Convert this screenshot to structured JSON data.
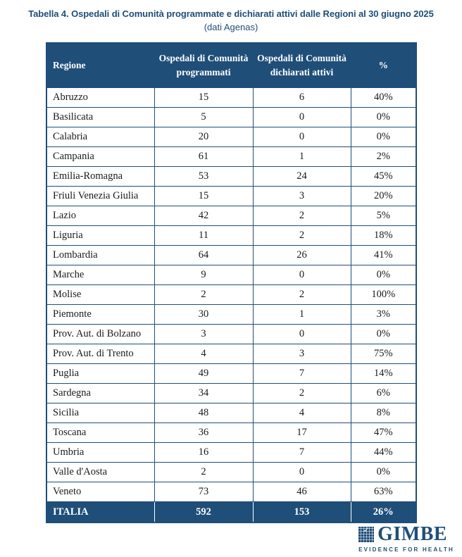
{
  "title": "Tabella 4. Ospedali di Comunità programmate e dichiarati attivi dalle Regioni al 30 giugno 2025",
  "subtitle": "(dati Agenas)",
  "colors": {
    "accent": "#1F4E79",
    "header_text": "#ffffff",
    "body_text": "#1a1a1a",
    "background": "#ffffff"
  },
  "table": {
    "headers": [
      "Regione",
      "Ospedali di Comunità programmati",
      "Ospedali di Comunità dichiarati attivi",
      "%"
    ],
    "rows": [
      [
        "Abruzzo",
        "15",
        "6",
        "40%"
      ],
      [
        "Basilicata",
        "5",
        "0",
        "0%"
      ],
      [
        "Calabria",
        "20",
        "0",
        "0%"
      ],
      [
        "Campania",
        "61",
        "1",
        "2%"
      ],
      [
        "Emilia-Romagna",
        "53",
        "24",
        "45%"
      ],
      [
        "Friuli Venezia Giulia",
        "15",
        "3",
        "20%"
      ],
      [
        "Lazio",
        "42",
        "2",
        "5%"
      ],
      [
        "Liguria",
        "11",
        "2",
        "18%"
      ],
      [
        "Lombardia",
        "64",
        "26",
        "41%"
      ],
      [
        "Marche",
        "9",
        "0",
        "0%"
      ],
      [
        "Molise",
        "2",
        "2",
        "100%"
      ],
      [
        "Piemonte",
        "30",
        "1",
        "3%"
      ],
      [
        "Prov. Aut. di Bolzano",
        "3",
        "0",
        "0%"
      ],
      [
        "Prov. Aut. di Trento",
        "4",
        "3",
        "75%"
      ],
      [
        "Puglia",
        "49",
        "7",
        "14%"
      ],
      [
        "Sardegna",
        "34",
        "2",
        "6%"
      ],
      [
        "Sicilia",
        "48",
        "4",
        "8%"
      ],
      [
        "Toscana",
        "36",
        "17",
        "47%"
      ],
      [
        "Umbria",
        "16",
        "7",
        "44%"
      ],
      [
        "Valle d'Aosta",
        "2",
        "0",
        "0%"
      ],
      [
        "Veneto",
        "73",
        "46",
        "63%"
      ]
    ],
    "footer": [
      "ITALIA",
      "592",
      "153",
      "26%"
    ]
  },
  "logo": {
    "name": "GIMBE",
    "tagline": "EVIDENCE FOR HEALTH",
    "check_icon": "✓"
  },
  "chart_data": {
    "type": "table",
    "title": "Tabella 4. Ospedali di Comunità programmate e dichiarati attivi dalle Regioni al 30 giugno 2025 (dati Agenas)",
    "columns": [
      "Regione",
      "Ospedali di Comunità programmati",
      "Ospedali di Comunità dichiarati attivi",
      "%"
    ],
    "rows": [
      {
        "regione": "Abruzzo",
        "programmati": 15,
        "attivi": 6,
        "percento": "40%"
      },
      {
        "regione": "Basilicata",
        "programmati": 5,
        "attivi": 0,
        "percento": "0%"
      },
      {
        "regione": "Calabria",
        "programmati": 20,
        "attivi": 0,
        "percento": "0%"
      },
      {
        "regione": "Campania",
        "programmati": 61,
        "attivi": 1,
        "percento": "2%"
      },
      {
        "regione": "Emilia-Romagna",
        "programmati": 53,
        "attivi": 24,
        "percento": "45%"
      },
      {
        "regione": "Friuli Venezia Giulia",
        "programmati": 15,
        "attivi": 3,
        "percento": "20%"
      },
      {
        "regione": "Lazio",
        "programmati": 42,
        "attivi": 2,
        "percento": "5%"
      },
      {
        "regione": "Liguria",
        "programmati": 11,
        "attivi": 2,
        "percento": "18%"
      },
      {
        "regione": "Lombardia",
        "programmati": 64,
        "attivi": 26,
        "percento": "41%"
      },
      {
        "regione": "Marche",
        "programmati": 9,
        "attivi": 0,
        "percento": "0%"
      },
      {
        "regione": "Molise",
        "programmati": 2,
        "attivi": 2,
        "percento": "100%"
      },
      {
        "regione": "Piemonte",
        "programmati": 30,
        "attivi": 1,
        "percento": "3%"
      },
      {
        "regione": "Prov. Aut. di Bolzano",
        "programmati": 3,
        "attivi": 0,
        "percento": "0%"
      },
      {
        "regione": "Prov. Aut. di Trento",
        "programmati": 4,
        "attivi": 3,
        "percento": "75%"
      },
      {
        "regione": "Puglia",
        "programmati": 49,
        "attivi": 7,
        "percento": "14%"
      },
      {
        "regione": "Sardegna",
        "programmati": 34,
        "attivi": 2,
        "percento": "6%"
      },
      {
        "regione": "Sicilia",
        "programmati": 48,
        "attivi": 4,
        "percento": "8%"
      },
      {
        "regione": "Toscana",
        "programmati": 36,
        "attivi": 17,
        "percento": "47%"
      },
      {
        "regione": "Umbria",
        "programmati": 16,
        "attivi": 7,
        "percento": "44%"
      },
      {
        "regione": "Valle d'Aosta",
        "programmati": 2,
        "attivi": 0,
        "percento": "0%"
      },
      {
        "regione": "Veneto",
        "programmati": 73,
        "attivi": 46,
        "percento": "63%"
      }
    ],
    "totals": {
      "regione": "ITALIA",
      "programmati": 592,
      "attivi": 153,
      "percento": "26%"
    }
  }
}
